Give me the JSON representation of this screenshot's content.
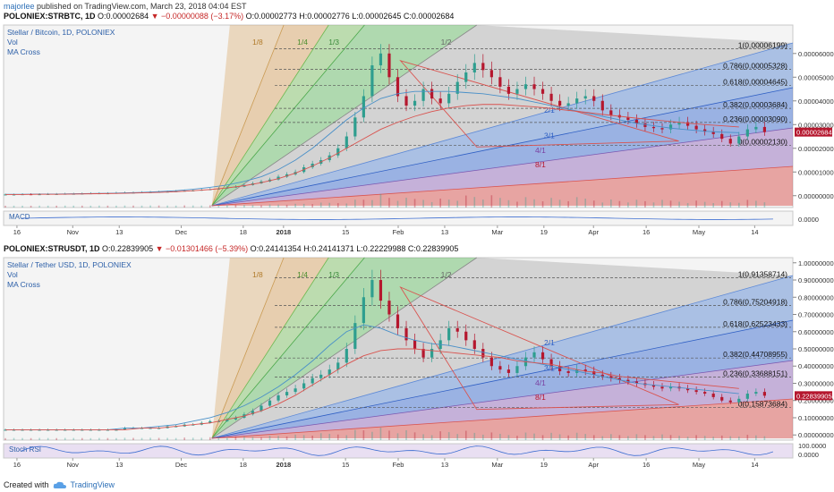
{
  "header": {
    "author": "majorlee",
    "published": "published on TradingView.com, March 23, 2018 04:04 EST"
  },
  "footer": {
    "created_with": "Created with",
    "brand": "TradingView"
  },
  "colors": {
    "up": "#2e9e8f",
    "down": "#b5172e",
    "fan_red": "#d9534f",
    "fan_blue": "#3f6fd1",
    "fan_green": "#5cb85c",
    "fan_orange": "#d6a05a"
  },
  "icons": [
    "tradingview-cloud-icon",
    "price-down-triangle-icon"
  ],
  "chart_data": [
    {
      "type": "candlestick",
      "symbol": "POLONIEX:STRBTC, 1D",
      "ohlc_line": {
        "O": "0.00002684",
        "change": "−0.00000088 (−3.17%)",
        "Op": "0.00002773",
        "H": "0.00002776",
        "L": "0.00002645",
        "C": "0.00002684"
      },
      "legend": [
        "Stellar / Bitcoin, 1D, POLONIEX",
        "Vol",
        "MA Cross"
      ],
      "indicator": "MACD",
      "y_ticks": [
        "0.00006000",
        "0.00005000",
        "0.00004000",
        "0.00003000",
        "0.00002000",
        "0.00001000",
        "0.00000000"
      ],
      "y_tick_values": [
        6,
        5,
        4,
        3,
        2,
        1,
        0
      ],
      "ylim": [
        -0.5,
        7.2
      ],
      "last_price": "0.00002684",
      "indicator_tick": "0.0000",
      "fib_levels": [
        {
          "label": "1(0.00006199)",
          "v": 6.199
        },
        {
          "label": "0.786(0.00005328)",
          "v": 5.328
        },
        {
          "label": "0.618(0.00004645)",
          "v": 4.645
        },
        {
          "label": "0.382(0.00003684)",
          "v": 3.684
        },
        {
          "label": "0.236(0.00003090)",
          "v": 3.09
        },
        {
          "label": "0(0.00002130)",
          "v": 2.13
        }
      ],
      "fan_labels": [
        "1/8",
        "1/4",
        "1/3",
        "1/2",
        "2/1",
        "3/1",
        "4/1",
        "8/1"
      ],
      "x_labels": [
        "16",
        "Nov",
        "13",
        "Dec",
        "18",
        "2018",
        "15",
        "Feb",
        "13",
        "Mar",
        "19",
        "Apr",
        "16",
        "May",
        "14"
      ],
      "closes": [
        0.05,
        0.05,
        0.06,
        0.05,
        0.06,
        0.07,
        0.07,
        0.08,
        0.08,
        0.09,
        0.1,
        0.1,
        0.1,
        0.12,
        0.13,
        0.13,
        0.14,
        0.15,
        0.16,
        0.17,
        0.19,
        0.21,
        0.22,
        0.25,
        0.27,
        0.3,
        0.35,
        0.38,
        0.45,
        0.52,
        0.6,
        0.68,
        0.8,
        0.9,
        1.0,
        1.2,
        1.35,
        1.5,
        1.7,
        2.0,
        2.5,
        3.3,
        4.2,
        5.5,
        6.0,
        5.0,
        4.2,
        3.8,
        4.0,
        4.5,
        4.1,
        3.9,
        4.3,
        4.8,
        5.2,
        5.6,
        5.3,
        5.0,
        4.6,
        4.3,
        4.5,
        4.7,
        4.5,
        4.3,
        4.0,
        3.8,
        3.9,
        4.1,
        4.2,
        4.0,
        3.6,
        3.4,
        3.3,
        3.2,
        3.05,
        2.9,
        2.85,
        2.8,
        3.0,
        3.1,
        2.95,
        2.8,
        2.7,
        2.6,
        2.4,
        2.2,
        2.5,
        2.8,
        2.9,
        2.684
      ],
      "ma_fast": [
        0.06,
        0.06,
        0.07,
        0.07,
        0.08,
        0.09,
        0.1,
        0.12,
        0.14,
        0.17,
        0.21,
        0.27,
        0.35,
        0.45,
        0.6,
        0.8,
        1.1,
        1.5,
        2.0,
        2.6,
        3.2,
        3.7,
        4.1,
        4.3,
        4.4,
        4.4,
        4.4,
        4.35,
        4.3,
        4.2,
        4.1,
        3.95,
        3.8,
        3.65,
        3.5,
        3.35,
        3.2,
        3.05,
        2.95,
        2.85,
        2.78,
        2.72,
        2.68,
        2.66
      ],
      "ma_slow": [
        0.05,
        0.05,
        0.06,
        0.06,
        0.07,
        0.08,
        0.09,
        0.1,
        0.12,
        0.14,
        0.17,
        0.21,
        0.26,
        0.33,
        0.42,
        0.55,
        0.72,
        0.95,
        1.25,
        1.6,
        2.0,
        2.4,
        2.8,
        3.1,
        3.35,
        3.55,
        3.7,
        3.8,
        3.85,
        3.85,
        3.8,
        3.75,
        3.68,
        3.6,
        3.52,
        3.43,
        3.35,
        3.27,
        3.2,
        3.13,
        3.06,
        3.0,
        2.95,
        2.9
      ]
    },
    {
      "type": "candlestick",
      "symbol": "POLONIEX:STRUSDT, 1D",
      "ohlc_line": {
        "O": "0.22839905",
        "change": "−0.01301466 (−5.39%)",
        "Op": "0.24141354",
        "H": "0.24141371",
        "L": "0.22229988",
        "C": "0.22839905"
      },
      "legend": [
        "Stellar / Tether USD, 1D, POLONIEX",
        "Vol",
        "MA Cross"
      ],
      "indicator": "Stoch RSI",
      "y_ticks": [
        "1.00000000",
        "0.90000000",
        "0.80000000",
        "0.70000000",
        "0.60000000",
        "0.50000000",
        "0.40000000",
        "0.30000000",
        "0.20000000",
        "0.10000000",
        "0.00000000"
      ],
      "y_tick_values": [
        1.0,
        0.9,
        0.8,
        0.7,
        0.6,
        0.5,
        0.4,
        0.3,
        0.2,
        0.1,
        0.0
      ],
      "ylim": [
        -0.03,
        1.03
      ],
      "last_price": "0.22839905",
      "indicator_ticks": [
        "100.0000",
        "0.0000"
      ],
      "fib_levels": [
        {
          "label": "1(0.91358714)",
          "v": 0.9136
        },
        {
          "label": "0.786(0.75204918)",
          "v": 0.752
        },
        {
          "label": "0.618(0.62523433)",
          "v": 0.6252
        },
        {
          "label": "0.382(0.44708955)",
          "v": 0.4471
        },
        {
          "label": "0.236(0.33688151)",
          "v": 0.3369
        },
        {
          "label": "0(0.15873684)",
          "v": 0.1587
        }
      ],
      "fan_labels": [
        "1/8",
        "1/4",
        "1/3",
        "1/2",
        "2/1",
        "3/1",
        "4/1",
        "8/1"
      ],
      "x_labels": [
        "16",
        "Nov",
        "13",
        "Dec",
        "18",
        "2018",
        "15",
        "Feb",
        "13",
        "Mar",
        "19",
        "Apr",
        "16",
        "May",
        "14"
      ],
      "closes": [
        0.03,
        0.03,
        0.03,
        0.03,
        0.03,
        0.03,
        0.03,
        0.03,
        0.03,
        0.03,
        0.03,
        0.03,
        0.03,
        0.03,
        0.04,
        0.04,
        0.04,
        0.04,
        0.04,
        0.05,
        0.05,
        0.06,
        0.06,
        0.07,
        0.08,
        0.08,
        0.09,
        0.1,
        0.12,
        0.14,
        0.17,
        0.2,
        0.23,
        0.25,
        0.27,
        0.3,
        0.33,
        0.35,
        0.38,
        0.42,
        0.5,
        0.65,
        0.8,
        0.9,
        0.78,
        0.7,
        0.62,
        0.55,
        0.5,
        0.45,
        0.5,
        0.55,
        0.62,
        0.6,
        0.55,
        0.5,
        0.45,
        0.4,
        0.38,
        0.36,
        0.4,
        0.45,
        0.48,
        0.44,
        0.4,
        0.37,
        0.36,
        0.38,
        0.37,
        0.35,
        0.34,
        0.33,
        0.32,
        0.31,
        0.3,
        0.29,
        0.28,
        0.27,
        0.28,
        0.27,
        0.26,
        0.25,
        0.24,
        0.22,
        0.2,
        0.19,
        0.21,
        0.24,
        0.25,
        0.228
      ],
      "ma_fast": [
        0.03,
        0.03,
        0.03,
        0.03,
        0.03,
        0.03,
        0.03,
        0.04,
        0.04,
        0.05,
        0.06,
        0.08,
        0.1,
        0.13,
        0.17,
        0.22,
        0.28,
        0.35,
        0.43,
        0.52,
        0.6,
        0.64,
        0.62,
        0.58,
        0.55,
        0.53,
        0.52,
        0.5,
        0.48,
        0.46,
        0.44,
        0.42,
        0.4,
        0.38,
        0.36,
        0.34,
        0.32,
        0.3,
        0.29,
        0.28,
        0.27,
        0.26,
        0.25,
        0.24
      ],
      "ma_slow": [
        0.03,
        0.03,
        0.03,
        0.03,
        0.03,
        0.03,
        0.03,
        0.03,
        0.04,
        0.04,
        0.05,
        0.06,
        0.07,
        0.09,
        0.11,
        0.14,
        0.18,
        0.23,
        0.29,
        0.35,
        0.41,
        0.46,
        0.49,
        0.5,
        0.5,
        0.49,
        0.48,
        0.47,
        0.46,
        0.45,
        0.43,
        0.42,
        0.41,
        0.39,
        0.37,
        0.36,
        0.34,
        0.33,
        0.32,
        0.31,
        0.3,
        0.29,
        0.28,
        0.27
      ]
    }
  ]
}
